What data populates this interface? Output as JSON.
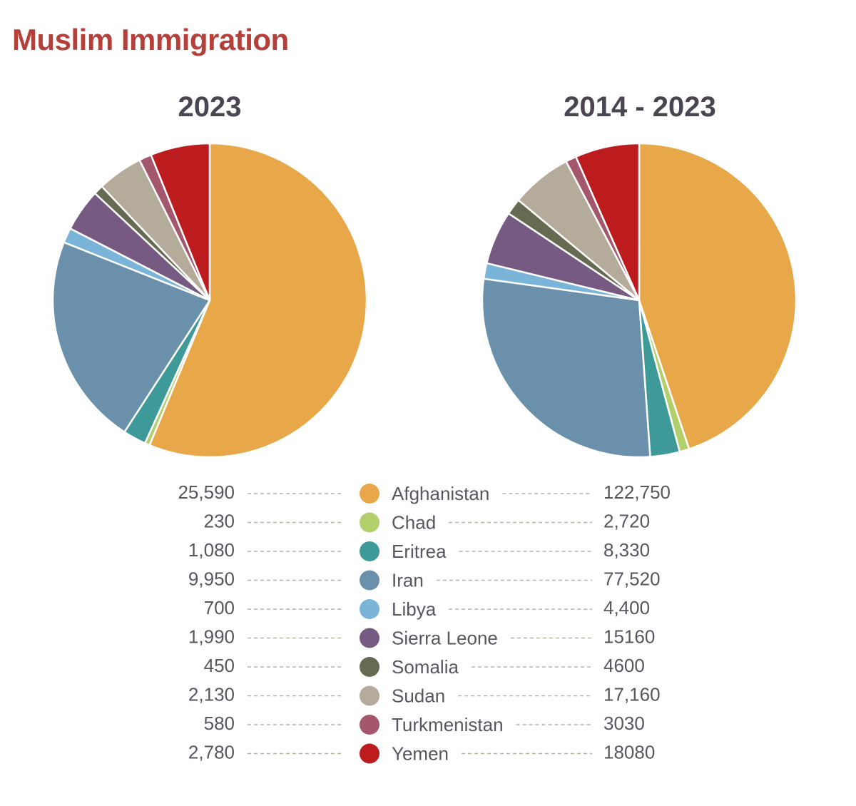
{
  "title": "Muslim Immigration",
  "colors": {
    "title": "#b5403a",
    "text": "#5a5560",
    "leader": "#b7b2a5"
  },
  "chart_data": [
    {
      "type": "pie",
      "title": "2023",
      "categories": [
        "Afghanistan",
        "Chad",
        "Eritrea",
        "Iran",
        "Libya",
        "Sierra Leone",
        "Somalia",
        "Sudan",
        "Turkmenistan",
        "Yemen"
      ],
      "values": [
        25590,
        230,
        1080,
        9950,
        700,
        1990,
        450,
        2130,
        580,
        2780
      ],
      "labels": [
        "25,590",
        "230",
        "1,080",
        "9,950",
        "700",
        "1,990",
        "450",
        "2,130",
        "580",
        "2,780"
      ],
      "colors": [
        "#e8a84a",
        "#b3cf6b",
        "#3d9a98",
        "#6a90ab",
        "#7ab4d8",
        "#765a82",
        "#656a51",
        "#b5ab9a",
        "#a3566c",
        "#bd1c1e"
      ]
    },
    {
      "type": "pie",
      "title": "2014 - 2023",
      "categories": [
        "Afghanistan",
        "Chad",
        "Eritrea",
        "Iran",
        "Libya",
        "Sierra Leone",
        "Somalia",
        "Sudan",
        "Turkmenistan",
        "Yemen"
      ],
      "values": [
        122750,
        2720,
        8330,
        77520,
        4400,
        15160,
        4600,
        17160,
        3030,
        18080
      ],
      "labels": [
        "122,750",
        "2,720",
        "8,330",
        "77,520",
        "4,400",
        "15160",
        "4600",
        "17,160",
        "3030",
        "18080"
      ],
      "colors": [
        "#e8a84a",
        "#b3cf6b",
        "#3d9a98",
        "#6a90ab",
        "#7ab4d8",
        "#765a82",
        "#656a51",
        "#b5ab9a",
        "#a3566c",
        "#bd1c1e"
      ]
    }
  ]
}
